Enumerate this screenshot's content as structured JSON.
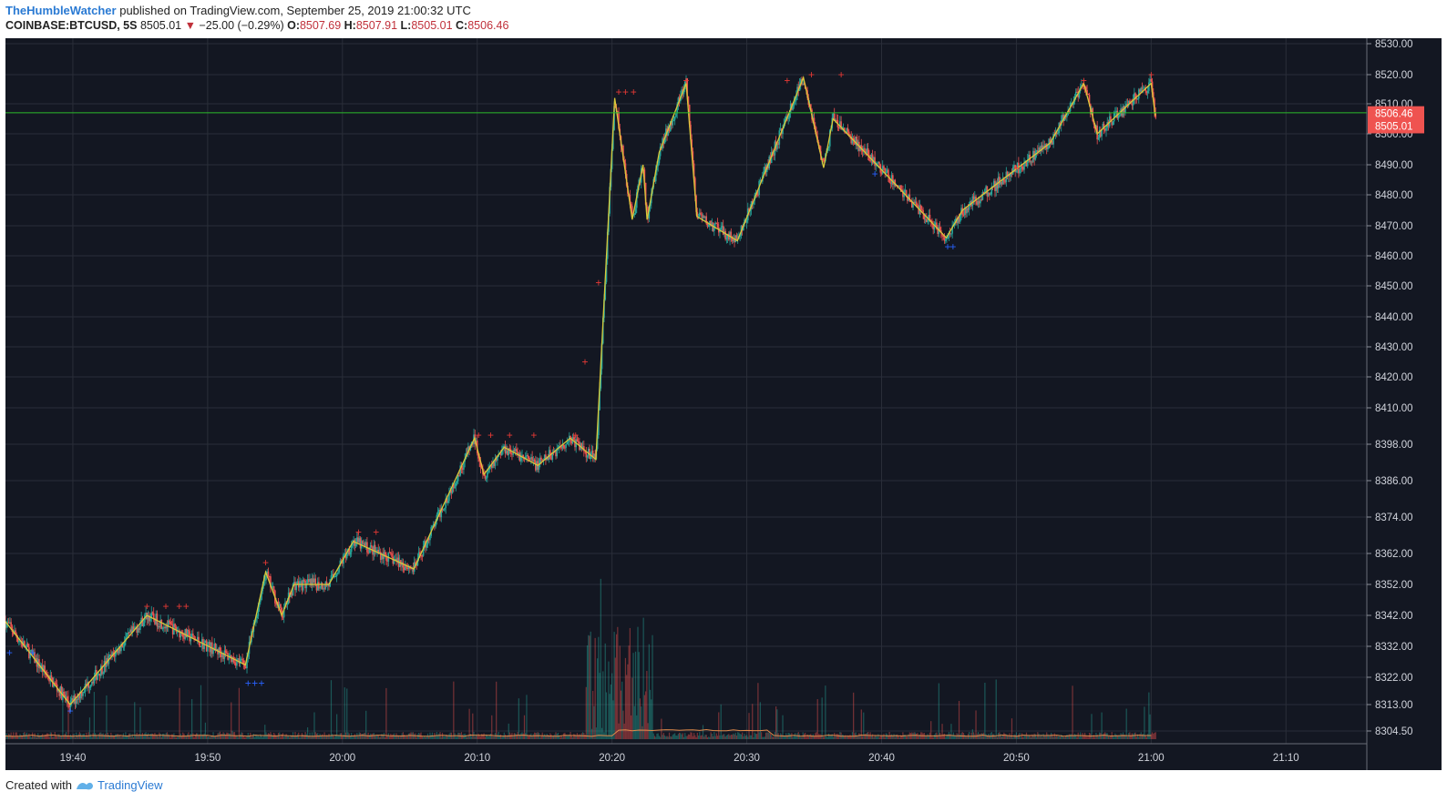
{
  "header": {
    "author": "TheHumbleWatcher",
    "published_text": "published on TradingView.com, September 25, 2019 21:00:32 UTC",
    "symbol": "COINBASE:BTCUSD, 5S",
    "last": "8505.01",
    "change": "−25.00 (−0.29%)",
    "o_label": "O:",
    "o_value": "8507.69",
    "h_label": "H:",
    "h_value": "8507.91",
    "l_label": "L:",
    "l_value": "8505.01",
    "c_label": "C:",
    "c_value": "8506.46"
  },
  "footer": {
    "created_with": "Created with",
    "brand": "TradingView"
  },
  "colors": {
    "background": "#131722",
    "grid": "#2a2e39",
    "up": "#26a69a",
    "down": "#ef5350",
    "zigzag": "#d8c83a",
    "hline": "#2bbd2b",
    "marker_up": "#e53935",
    "marker_down": "#2962ff",
    "price_tag": "#ef5350"
  },
  "chart_data": {
    "type": "candlestick",
    "y_ticks": [
      "8530.00",
      "8520.00",
      "8510.00",
      "8500.00",
      "8490.00",
      "8480.00",
      "8470.00",
      "8460.00",
      "8450.00",
      "8440.00",
      "8430.00",
      "8420.00",
      "8410.00",
      "8398.00",
      "8386.00",
      "8374.00",
      "8362.00",
      "8352.00",
      "8342.00",
      "8332.00",
      "8322.00",
      "8313.00",
      "8304.50"
    ],
    "x_ticks": [
      "19:40",
      "19:50",
      "20:00",
      "20:10",
      "20:20",
      "20:30",
      "20:40",
      "20:50",
      "21:00",
      "21:10"
    ],
    "x_start": "19:35",
    "x_end": "21:16",
    "horizontal_line": 8507,
    "price_tags": [
      "8506.46",
      "8505.01"
    ],
    "zigzag": [
      {
        "t": "19:35",
        "v": 8340
      },
      {
        "t": "19:39.8",
        "v": 8313
      },
      {
        "t": "19:45.5",
        "v": 8342
      },
      {
        "t": "19:52.8",
        "v": 8326
      },
      {
        "t": "19:54.3",
        "v": 8356
      },
      {
        "t": "19:55.5",
        "v": 8342
      },
      {
        "t": "19:56.4",
        "v": 8352
      },
      {
        "t": "19:59",
        "v": 8352
      },
      {
        "t": "20:00.8",
        "v": 8366
      },
      {
        "t": "20:05.3",
        "v": 8357
      },
      {
        "t": "20:09.8",
        "v": 8400
      },
      {
        "t": "20:10.5",
        "v": 8388
      },
      {
        "t": "20:12",
        "v": 8397
      },
      {
        "t": "20:14.5",
        "v": 8391
      },
      {
        "t": "20:16.9",
        "v": 8400
      },
      {
        "t": "20:18.8",
        "v": 8393
      },
      {
        "t": "20:20.2",
        "v": 8512
      },
      {
        "t": "20:21.5",
        "v": 8472
      },
      {
        "t": "20:22.3",
        "v": 8490
      },
      {
        "t": "20:22.6",
        "v": 8472
      },
      {
        "t": "20:23.5",
        "v": 8494
      },
      {
        "t": "20:25.5",
        "v": 8517
      },
      {
        "t": "20:26.3",
        "v": 8473
      },
      {
        "t": "20:29.3",
        "v": 8465
      },
      {
        "t": "20:34.2",
        "v": 8519
      },
      {
        "t": "20:35.7",
        "v": 8489
      },
      {
        "t": "20:36.4",
        "v": 8505
      },
      {
        "t": "20:44.8",
        "v": 8466
      },
      {
        "t": "20:46",
        "v": 8475
      },
      {
        "t": "20:52.5",
        "v": 8497
      },
      {
        "t": "20:55",
        "v": 8517
      },
      {
        "t": "20:56",
        "v": 8500
      },
      {
        "t": "21:00",
        "v": 8517
      },
      {
        "t": "21:00.3",
        "v": 8506
      }
    ],
    "markers_up": [
      {
        "t": "19:45.5",
        "v": 8345
      },
      {
        "t": "19:46.9",
        "v": 8345
      },
      {
        "t": "19:47.9",
        "v": 8345
      },
      {
        "t": "19:48.4",
        "v": 8345
      },
      {
        "t": "19:54.3",
        "v": 8359
      },
      {
        "t": "20:01.2",
        "v": 8369
      },
      {
        "t": "20:02.5",
        "v": 8369
      },
      {
        "t": "20:10.1",
        "v": 8401
      },
      {
        "t": "20:11",
        "v": 8401
      },
      {
        "t": "20:12.4",
        "v": 8401
      },
      {
        "t": "20:14.2",
        "v": 8401
      },
      {
        "t": "20:17.3",
        "v": 8401
      },
      {
        "t": "20:20.5",
        "v": 8514
      },
      {
        "t": "20:21",
        "v": 8514
      },
      {
        "t": "20:21.6",
        "v": 8514
      },
      {
        "t": "20:25.5",
        "v": 8518
      },
      {
        "t": "20:33",
        "v": 8518
      },
      {
        "t": "20:34.8",
        "v": 8520
      },
      {
        "t": "20:37",
        "v": 8520
      },
      {
        "t": "20:55",
        "v": 8518
      },
      {
        "t": "21:00",
        "v": 8520
      },
      {
        "t": "20:50",
        "v": 8489
      },
      {
        "t": "20:19",
        "v": 8451
      },
      {
        "t": "20:18",
        "v": 8425
      }
    ],
    "markers_down": [
      {
        "t": "19:35.3",
        "v": 8330
      },
      {
        "t": "19:37",
        "v": 8330
      },
      {
        "t": "19:39.8",
        "v": 8311
      },
      {
        "t": "19:53",
        "v": 8320
      },
      {
        "t": "19:53.5",
        "v": 8320
      },
      {
        "t": "19:54",
        "v": 8320
      },
      {
        "t": "20:39.5",
        "v": 8487
      },
      {
        "t": "20:44.9",
        "v": 8463
      },
      {
        "t": "20:45.3",
        "v": 8463
      }
    ]
  }
}
